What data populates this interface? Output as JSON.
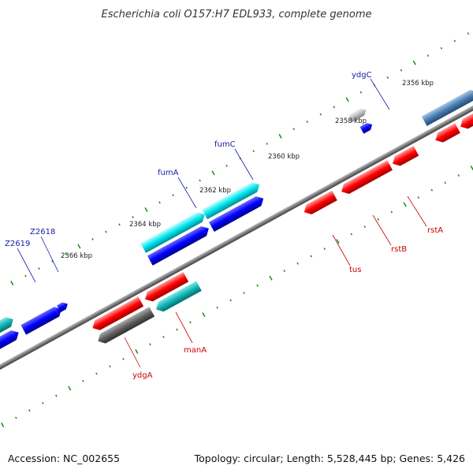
{
  "title": "Escherichia coli O157:H7 EDL933, complete genome",
  "footer": {
    "accession": "Accession: NC_002655",
    "summary": "Topology: circular; Length: 5,528,445 bp; Genes: 5,426"
  },
  "colors": {
    "backbone": "#7a7a7a",
    "tick": "#1a8a1a",
    "forward_cds": "#0000ff",
    "forward_rna": "#00bcd4",
    "reverse_cds": "#ff0000",
    "reverse_pseudo": "#555555",
    "label_forward": "#1a1aaa",
    "label_reverse": "#cc0000"
  },
  "ticks": [
    "2356 kbp",
    "2358 kbp",
    "2360 kbp",
    "2362 kbp",
    "2364 kbp",
    "2366 kbp"
  ],
  "forward_labels": [
    "ydgC",
    "fumC",
    "fumA",
    "Z2618",
    "Z2619"
  ],
  "reverse_labels": [
    "rstA",
    "rstB",
    "tus",
    "manA",
    "ydgA"
  ]
}
